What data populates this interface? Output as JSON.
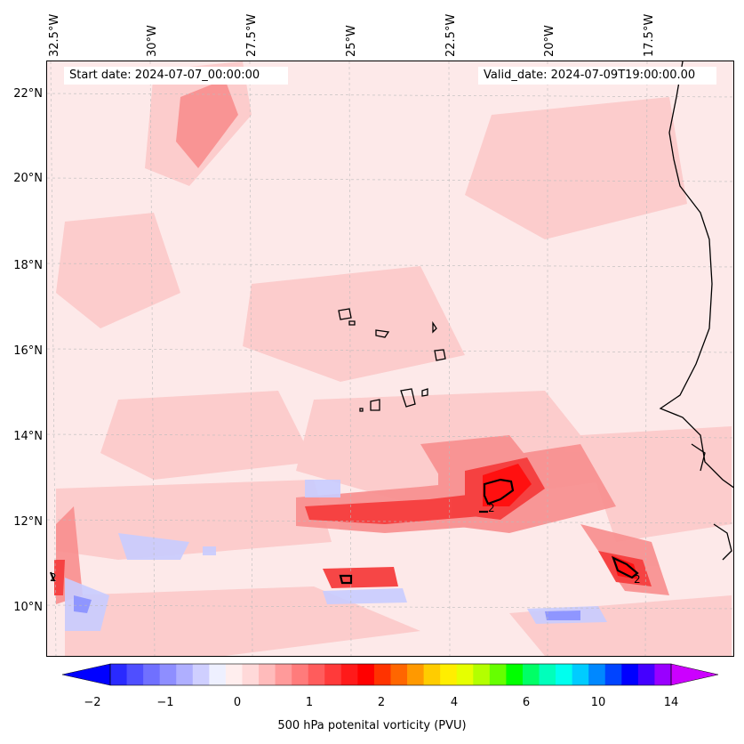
{
  "map": {
    "start_date": "Start date: 2024-07-07_00:00:00",
    "valid_date": "Valid_date: 2024-07-09T19:00:00.00",
    "lon_labels": [
      "32.5°W",
      "30°W",
      "27.5°W",
      "25°W",
      "22.5°W",
      "20°W",
      "17.5°W"
    ],
    "lat_labels": [
      "22°N",
      "20°N",
      "18°N",
      "16°N",
      "14°N",
      "12°N",
      "10°N"
    ],
    "contour_label": "2",
    "colors": {
      "background_pv": "#fde9e9",
      "low_pv": "#fcc9c9",
      "mid_pv": "#f88e8e",
      "high_pv": "#f53d3d",
      "peak_pv": "#ff1010",
      "negative_pv": "#c8ccff",
      "strong_negative_pv": "#8f96ff",
      "coastline": "#000000"
    }
  },
  "colorbar": {
    "tick_labels": [
      "−2",
      "−1",
      "0",
      "1",
      "2",
      "4",
      "6",
      "10",
      "14"
    ],
    "title": "500 hPa potenital vorticity (PVU)",
    "colors": [
      "#0000ff",
      "#2a2aff",
      "#4f4fff",
      "#7070ff",
      "#8e8eff",
      "#afafff",
      "#cfcfff",
      "#eef0ff",
      "#ffeeee",
      "#ffd9d9",
      "#ffbbbb",
      "#ff9a9a",
      "#ff7b7b",
      "#ff5c5c",
      "#ff3a3a",
      "#ff1a1a",
      "#ff0000",
      "#ff3300",
      "#ff6600",
      "#ff9900",
      "#ffcc00",
      "#ffee00",
      "#e6ff00",
      "#b3ff00",
      "#66ff00",
      "#00ff00",
      "#00ff66",
      "#00ffbb",
      "#00ffee",
      "#00ccff",
      "#0088ff",
      "#0044ff",
      "#0000ff",
      "#4400ff",
      "#9900ff",
      "#cc00ff"
    ]
  }
}
